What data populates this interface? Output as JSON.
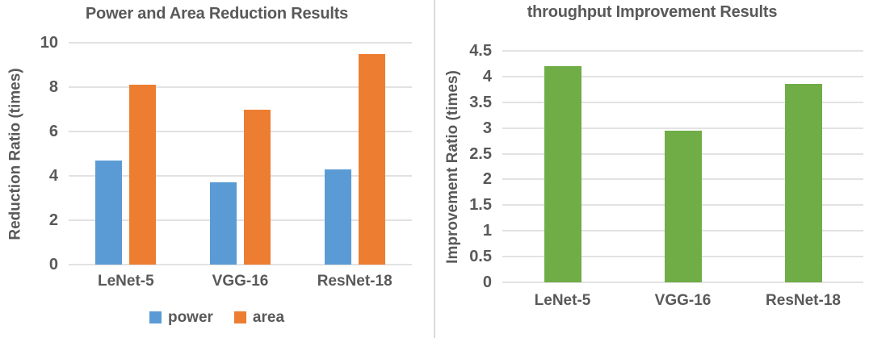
{
  "colors": {
    "text": "#595959",
    "gridline": "#E2E2E2",
    "divider": "#D9D9D9",
    "background": "#FFFFFF",
    "power_blue": "#5B9BD5",
    "area_orange": "#ED7D31",
    "throughput_green": "#70AD47"
  },
  "chart_data": [
    {
      "type": "bar",
      "title": "Power and Area Reduction Results",
      "ylabel": "Reduction Ratio (times)",
      "xlabel": "",
      "categories": [
        "LeNet-5",
        "VGG-16",
        "ResNet-18"
      ],
      "series": [
        {
          "name": "power",
          "color": "#5B9BD5",
          "values": [
            4.7,
            3.7,
            4.3
          ]
        },
        {
          "name": "area",
          "color": "#ED7D31",
          "values": [
            8.1,
            7.0,
            9.5
          ]
        }
      ],
      "ylim": [
        0,
        10
      ],
      "yticks": [
        "0",
        "2",
        "4",
        "6",
        "8",
        "10"
      ],
      "grid": true,
      "legend": {
        "show": true,
        "position": "bottom"
      }
    },
    {
      "type": "bar",
      "title": "throughput Improvement Results",
      "ylabel": "Improvement Ratio (times)",
      "xlabel": "",
      "categories": [
        "LeNet-5",
        "VGG-16",
        "ResNet-18"
      ],
      "series": [
        {
          "name": "throughput",
          "color": "#70AD47",
          "values": [
            4.2,
            2.95,
            3.85
          ]
        }
      ],
      "ylim": [
        0,
        4.5
      ],
      "yticks": [
        "0",
        "0.5",
        "1",
        "1.5",
        "2",
        "2.5",
        "3",
        "3.5",
        "4",
        "4.5"
      ],
      "grid": true,
      "legend": {
        "show": false,
        "position": "none"
      }
    }
  ]
}
